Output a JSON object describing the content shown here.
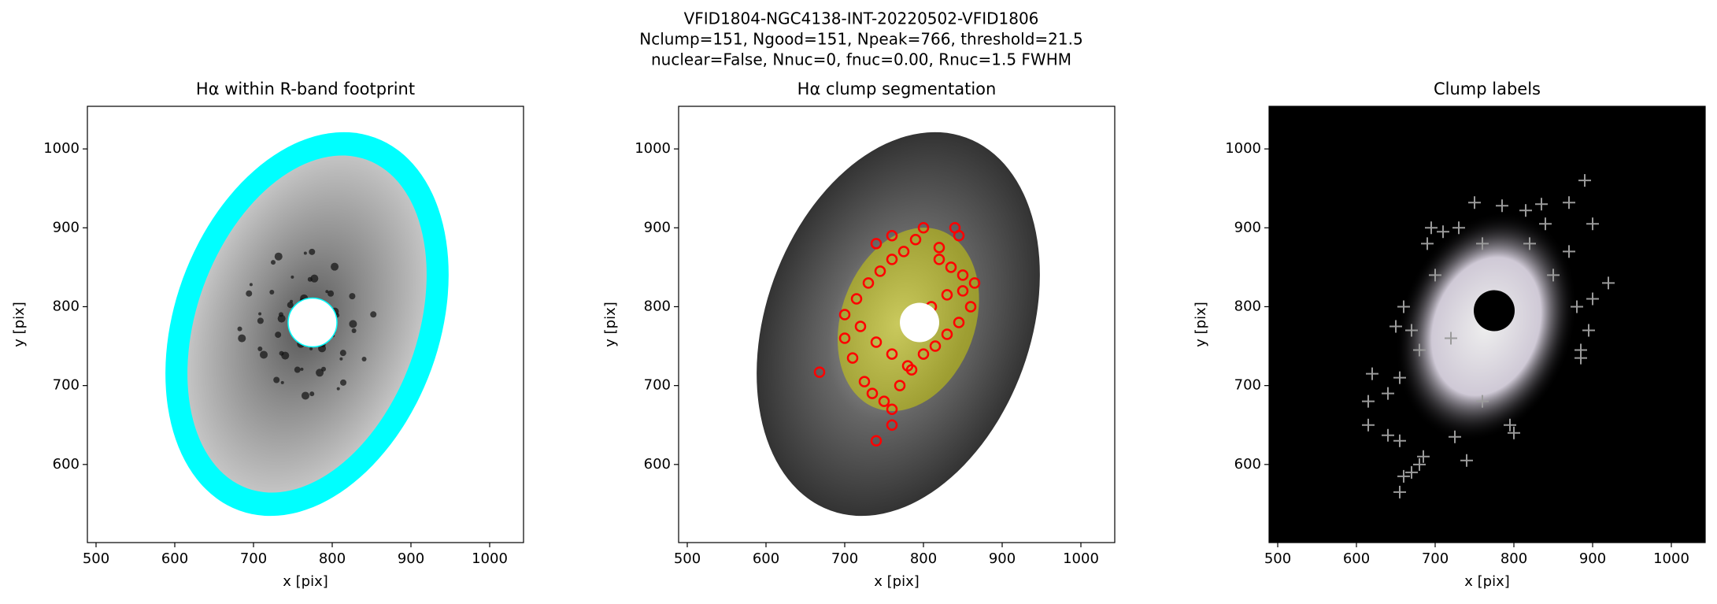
{
  "figure_title": [
    "VFID1804-NGC4138-INT-20220502-VFID1806",
    "Nclump=151, Ngood=151, Npeak=766, threshold=21.5",
    "nuclear=False, Nnuc=0, fnuc=0.00, Rnuc=1.5 FWHM"
  ],
  "chart_data": [
    {
      "type": "image",
      "title": "Hα within R-band footprint",
      "xlabel": "x [pix]",
      "ylabel": "y [pix]",
      "xlim": [
        489,
        1043
      ],
      "ylim": [
        501,
        1054
      ],
      "xticks": [
        500,
        600,
        700,
        800,
        900,
        1000
      ],
      "yticks": [
        600,
        700,
        800,
        900,
        1000
      ],
      "footprint_color": "#00ffff",
      "nucleus_x": 775,
      "nucleus_y": 780,
      "nucleus_radius": 31
    },
    {
      "type": "scatter",
      "title": "Hα clump segmentation",
      "xlabel": "x [pix]",
      "ylabel": "y [pix]",
      "xlim": [
        489,
        1043
      ],
      "ylim": [
        501,
        1054
      ],
      "xticks": [
        500,
        600,
        700,
        800,
        900,
        1000
      ],
      "yticks": [
        600,
        700,
        800,
        900,
        1000
      ],
      "marker": "o",
      "color": "#ff0000",
      "background": "#ffffff",
      "nucleus_x": 795,
      "nucleus_y": 780,
      "nucleus_radius": 25,
      "x": [
        668,
        740,
        800,
        840,
        700,
        710,
        725,
        735,
        750,
        760,
        770,
        785,
        800,
        815,
        830,
        845,
        860,
        700,
        715,
        730,
        745,
        760,
        775,
        820,
        835,
        850,
        865,
        720,
        740,
        760,
        780,
        810,
        830,
        850,
        740,
        760,
        790,
        820,
        845,
        760
      ],
      "y": [
        717,
        630,
        900,
        900,
        760,
        735,
        705,
        690,
        680,
        670,
        700,
        720,
        740,
        750,
        765,
        780,
        800,
        790,
        810,
        830,
        845,
        860,
        870,
        860,
        850,
        840,
        830,
        775,
        755,
        740,
        725,
        800,
        815,
        820,
        880,
        890,
        885,
        875,
        890,
        650
      ]
    },
    {
      "type": "scatter",
      "title": "Clump labels",
      "xlabel": "x [pix]",
      "ylabel": "y [pix]",
      "xlim": [
        489,
        1043
      ],
      "ylim": [
        501,
        1054
      ],
      "xticks": [
        500,
        600,
        700,
        800,
        900,
        1000
      ],
      "yticks": [
        600,
        700,
        800,
        900,
        1000
      ],
      "marker": "+",
      "color": "#9a9a9a",
      "background": "#000000",
      "x": [
        890,
        900,
        870,
        835,
        815,
        750,
        785,
        695,
        690,
        710,
        840,
        870,
        920,
        900,
        880,
        895,
        660,
        650,
        670,
        620,
        615,
        615,
        640,
        655,
        640,
        655,
        680,
        685,
        680,
        670,
        660,
        655,
        725,
        740,
        795,
        800,
        760,
        885,
        885,
        700,
        730,
        760,
        820,
        850,
        720
      ],
      "y": [
        960,
        905,
        932,
        930,
        922,
        932,
        928,
        900,
        880,
        895,
        905,
        870,
        830,
        810,
        800,
        770,
        800,
        775,
        770,
        715,
        680,
        650,
        637,
        630,
        690,
        710,
        745,
        610,
        600,
        590,
        585,
        565,
        635,
        605,
        650,
        640,
        680,
        745,
        735,
        840,
        900,
        880,
        880,
        840,
        760
      ]
    }
  ]
}
